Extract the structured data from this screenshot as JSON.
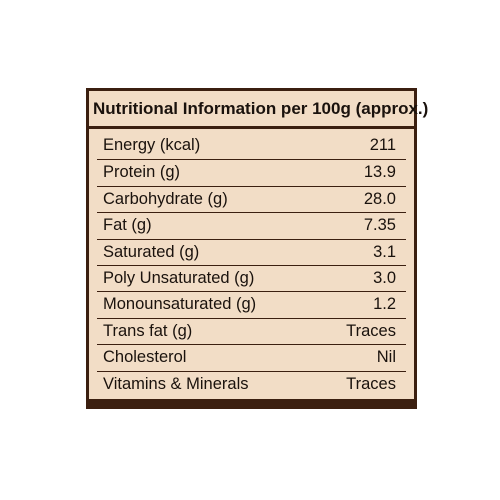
{
  "panel": {
    "title": "Nutritional Information per 100g (approx.)",
    "rows": [
      {
        "label": "Energy (kcal)",
        "value": "211"
      },
      {
        "label": "Protein (g)",
        "value": "13.9"
      },
      {
        "label": "Carbohydrate (g)",
        "value": "28.0"
      },
      {
        "label": "Fat (g)",
        "value": "7.35"
      },
      {
        "label": "Saturated (g)",
        "value": "3.1"
      },
      {
        "label": "Poly Unsaturated (g)",
        "value": "3.0"
      },
      {
        "label": "Monounsaturated (g)",
        "value": "1.2"
      },
      {
        "label": "Trans fat (g)",
        "value": "Traces"
      },
      {
        "label": "Cholesterol",
        "value": "Nil"
      },
      {
        "label": "Vitamins & Minerals",
        "value": "Traces"
      }
    ]
  },
  "colors": {
    "panel_background": "#f2ddc6",
    "border": "#3b1f10",
    "text": "#1a120d",
    "page_background": "#ffffff"
  }
}
